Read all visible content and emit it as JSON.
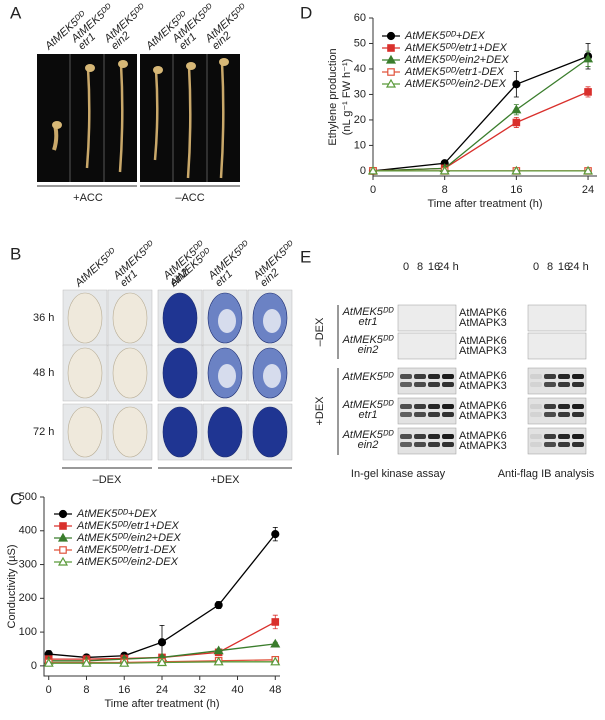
{
  "panel_a": {
    "label": "A",
    "columns": [
      [
        "AtMEK5ᴰᴰ"
      ],
      [
        "AtMEK5ᴰᴰ",
        "etr1"
      ],
      [
        "AtMEK5ᴰᴰ",
        "ein2"
      ],
      [
        "AtMEK5ᴰᴰ"
      ],
      [
        "AtMEK5ᴰᴰ",
        "etr1"
      ],
      [
        "AtMEK5ᴰᴰ",
        "ein2"
      ]
    ],
    "groups": [
      "+ACC",
      "–ACC"
    ]
  },
  "panel_b": {
    "label": "B",
    "columns": [
      [
        "AtMEK5ᴰᴰ"
      ],
      [
        "AtMEK5ᴰᴰ",
        "etr1"
      ],
      [
        "AtMEK5ᴰᴰ",
        "ein2"
      ]
    ],
    "columns_dex": [
      [
        "AtMEK5ᴰᴰ"
      ],
      [
        "AtMEK5ᴰᴰ",
        "etr1"
      ],
      [
        "AtMEK5ᴰᴰ",
        "ein2"
      ]
    ],
    "rows": [
      "36 h",
      "48 h",
      "72 h"
    ],
    "groups": [
      "–DEX",
      "+DEX"
    ]
  },
  "panel_e": {
    "label": "E",
    "groups": [
      "–DEX",
      "+DEX"
    ],
    "blots": [
      {
        "lanes": [
          "0",
          "8",
          "16",
          "24 h"
        ],
        "caption": "In-gel kinase assay"
      },
      {
        "lanes": [
          "0",
          "8",
          "16",
          "24 h"
        ],
        "caption": "Anti-flag IB analysis"
      }
    ],
    "rows": [
      {
        "name": [
          "AtMEK5ᴰᴰ",
          "etr1"
        ],
        "bands": [
          "AtMAPK6",
          "AtMAPK3"
        ]
      },
      {
        "name": [
          "AtMEK5ᴰᴰ",
          "ein2"
        ],
        "bands": [
          "AtMAPK6",
          "AtMAPK3"
        ]
      },
      {
        "name": [
          "AtMEK5ᴰᴰ"
        ],
        "bands": [
          "AtMAPK6",
          "AtMAPK3"
        ]
      },
      {
        "name": [
          "AtMEK5ᴰᴰ",
          "etr1"
        ],
        "bands": [
          "AtMAPK6",
          "AtMAPK3"
        ]
      },
      {
        "name": [
          "AtMEK5ᴰᴰ",
          "ein2"
        ],
        "bands": [
          "AtMAPK6",
          "AtMAPK3"
        ]
      }
    ]
  },
  "chart_data": [
    {
      "type": "line",
      "panel_label": "D",
      "ylabel": [
        "Ethylene production",
        "(nL g⁻¹ FW h⁻¹)"
      ],
      "xlabel": "Time after treatment (h)",
      "x": [
        0,
        8,
        16,
        24
      ],
      "xlim": [
        0,
        25
      ],
      "xticks": [
        0,
        8,
        16,
        24
      ],
      "ylim": [
        -2,
        60
      ],
      "yticks": [
        0,
        10,
        20,
        30,
        40,
        50,
        60
      ],
      "legend": "upper left",
      "series": [
        {
          "name": "AtMEK5ᴰᴰ+DEX",
          "color": "#000000",
          "marker": "circle",
          "filled": true,
          "values": [
            0,
            3,
            34,
            45
          ],
          "errors": [
            0,
            1,
            5,
            5
          ]
        },
        {
          "name": "AtMEK5ᴰᴰ/etr1+DEX",
          "color": "#d9302c",
          "marker": "square",
          "filled": true,
          "values": [
            0,
            1,
            19,
            31
          ],
          "errors": [
            0,
            0.5,
            2,
            2
          ]
        },
        {
          "name": "AtMEK5ᴰᴰ/ein2+DEX",
          "color": "#3a7d2c",
          "marker": "triangle",
          "filled": true,
          "values": [
            0,
            1,
            24,
            44
          ],
          "errors": [
            0,
            0.5,
            2,
            3
          ]
        },
        {
          "name": "AtMEK5ᴰᴰ/etr1-DEX",
          "color": "#e0533c",
          "marker": "square",
          "filled": false,
          "values": [
            0,
            0,
            0,
            0
          ],
          "errors": [
            0,
            0,
            0,
            0
          ]
        },
        {
          "name": "AtMEK5ᴰᴰ/ein2-DEX",
          "color": "#5a9a3a",
          "marker": "triangle",
          "filled": false,
          "values": [
            0,
            0,
            0,
            0
          ],
          "errors": [
            0,
            0,
            0,
            0
          ]
        }
      ]
    },
    {
      "type": "line",
      "panel_label": "C",
      "ylabel": [
        "Conductivity (µS)"
      ],
      "xlabel": "Time after treatment (h)",
      "x": [
        0,
        8,
        16,
        24,
        36,
        48
      ],
      "xlim": [
        -1,
        49
      ],
      "xticks": [
        0,
        8,
        16,
        24,
        32,
        40,
        48
      ],
      "ylim": [
        -30,
        500
      ],
      "yticks": [
        0,
        100,
        200,
        300,
        400,
        500
      ],
      "legend": "upper left",
      "series": [
        {
          "name": "AtMEK5ᴰᴰ+DEX",
          "color": "#000000",
          "marker": "circle",
          "filled": true,
          "values": [
            35,
            25,
            30,
            70,
            180,
            390
          ],
          "errors": [
            10,
            5,
            5,
            50,
            10,
            20
          ]
        },
        {
          "name": "AtMEK5ᴰᴰ/etr1+DEX",
          "color": "#d9302c",
          "marker": "square",
          "filled": true,
          "values": [
            20,
            20,
            22,
            25,
            40,
            130
          ],
          "errors": [
            5,
            5,
            5,
            5,
            5,
            20
          ]
        },
        {
          "name": "AtMEK5ᴰᴰ/ein2+DEX",
          "color": "#3a7d2c",
          "marker": "triangle",
          "filled": true,
          "values": [
            15,
            15,
            20,
            25,
            45,
            65
          ],
          "errors": [
            5,
            5,
            5,
            5,
            5,
            5
          ]
        },
        {
          "name": "AtMEK5ᴰᴰ/etr1-DEX",
          "color": "#e0533c",
          "marker": "square",
          "filled": false,
          "values": [
            10,
            10,
            10,
            12,
            15,
            18
          ],
          "errors": [
            3,
            3,
            3,
            3,
            3,
            3
          ]
        },
        {
          "name": "AtMEK5ᴰᴰ/ein2-DEX",
          "color": "#5a9a3a",
          "marker": "triangle",
          "filled": false,
          "values": [
            8,
            8,
            8,
            10,
            12,
            12
          ],
          "errors": [
            3,
            3,
            3,
            3,
            3,
            3
          ]
        }
      ]
    }
  ]
}
